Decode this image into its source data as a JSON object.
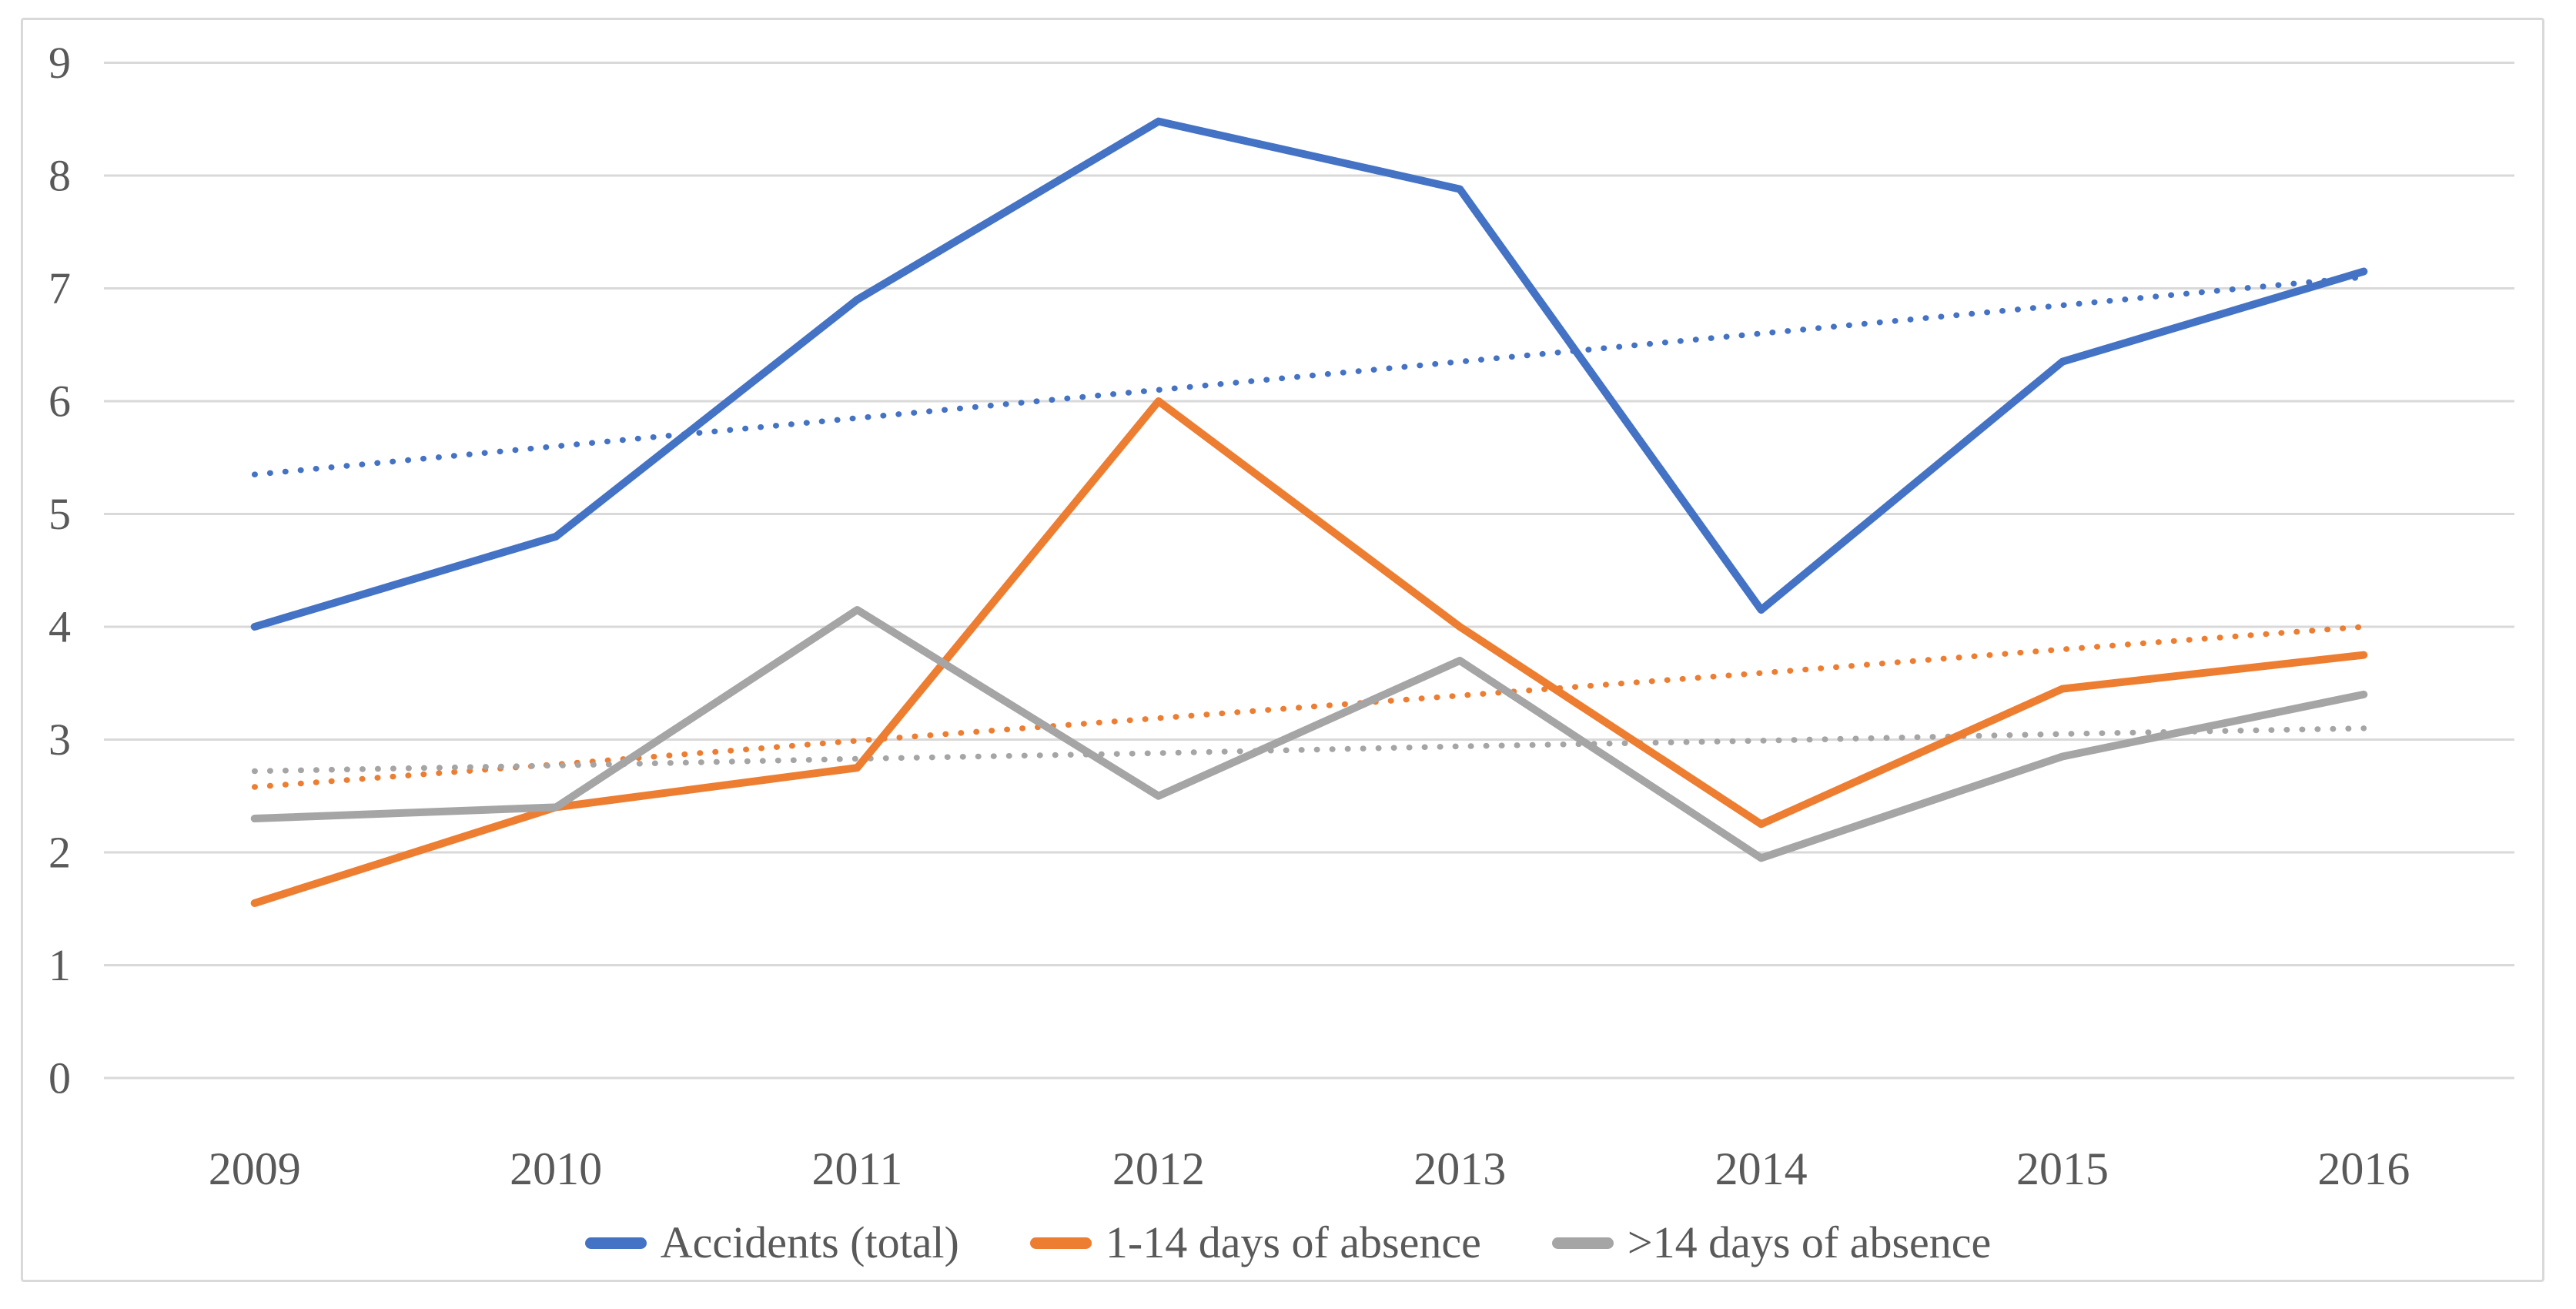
{
  "figure": {
    "background_color": "#ffffff",
    "frame_border_color": "#d9d9d9"
  },
  "chart_data": {
    "type": "line",
    "title": "",
    "xlabel": "",
    "ylabel": "",
    "categories": [
      "2009",
      "2010",
      "2011",
      "2012",
      "2013",
      "2014",
      "2015",
      "2016"
    ],
    "series": [
      {
        "name": "Accidents (total)",
        "color": "#4472C4",
        "style": "solid",
        "in_legend": true,
        "values": [
          4.0,
          4.8,
          6.9,
          8.48,
          7.88,
          4.15,
          6.35,
          7.15
        ]
      },
      {
        "name": "1-14 days of absence",
        "color": "#ED7D31",
        "style": "solid",
        "in_legend": true,
        "values": [
          1.55,
          2.4,
          2.75,
          6.0,
          4.0,
          2.25,
          3.45,
          3.75
        ]
      },
      {
        "name": ">14 days of absence",
        "color": "#A5A5A5",
        "style": "solid",
        "in_legend": true,
        "values": [
          2.3,
          2.4,
          4.15,
          2.5,
          3.7,
          1.95,
          2.85,
          3.4
        ]
      },
      {
        "name": "Linear trend (Accidents total)",
        "color": "#4472C4",
        "style": "dotted",
        "in_legend": false,
        "values": [
          5.35,
          5.6,
          5.85,
          6.1,
          6.35,
          6.6,
          6.85,
          7.1
        ]
      },
      {
        "name": "Linear trend (1-14 days of absence)",
        "color": "#ED7D31",
        "style": "dotted",
        "in_legend": false,
        "values": [
          2.58,
          2.78,
          2.99,
          3.19,
          3.39,
          3.59,
          3.8,
          4.0
        ]
      },
      {
        "name": "Linear trend (>14 days of absence)",
        "color": "#A5A5A5",
        "style": "dotted",
        "in_legend": false,
        "values": [
          2.72,
          2.77,
          2.83,
          2.88,
          2.94,
          2.99,
          3.05,
          3.1
        ]
      }
    ],
    "ylim": [
      0,
      9
    ],
    "yticks": [
      "0",
      "1",
      "2",
      "3",
      "4",
      "5",
      "6",
      "7",
      "8",
      "9"
    ],
    "grid": true,
    "grid_color": "#d9d9d9",
    "tick_label_color": "#595959",
    "legend_position": "bottom",
    "legend_labels": [
      "Accidents (total)",
      "1-14 days of absence",
      ">14 days of absence"
    ]
  }
}
